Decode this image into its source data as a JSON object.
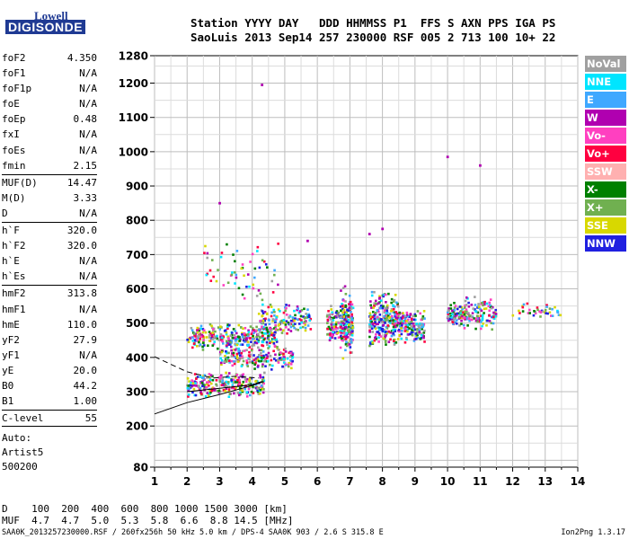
{
  "logo": {
    "line1": "Lowell",
    "line2": "DIGISONDE"
  },
  "header": {
    "line1": "Station YYYY DAY   DDD HHMMSS P1  FFS S AXN PPS IGA PS",
    "line2": "SaoLuis 2013 Sep14 257 230000 RSF 005 2 713 100 10+ 22"
  },
  "params_group1": [
    {
      "name": "foF2",
      "value": "4.350"
    },
    {
      "name": "foF1",
      "value": "N/A"
    },
    {
      "name": "foF1p",
      "value": "N/A"
    },
    {
      "name": "foE",
      "value": "N/A"
    },
    {
      "name": "foEp",
      "value": "0.48"
    },
    {
      "name": "fxI",
      "value": "N/A"
    },
    {
      "name": "foEs",
      "value": "N/A"
    },
    {
      "name": "fmin",
      "value": "2.15"
    }
  ],
  "params_group2": [
    {
      "name": "MUF(D)",
      "value": "14.47"
    },
    {
      "name": "M(D)",
      "value": "3.33"
    },
    {
      "name": "D",
      "value": "N/A"
    }
  ],
  "params_group3": [
    {
      "name": "h`F",
      "value": "320.0"
    },
    {
      "name": "h`F2",
      "value": "320.0"
    },
    {
      "name": "h`E",
      "value": "N/A"
    },
    {
      "name": "h`Es",
      "value": "N/A"
    }
  ],
  "params_group4": [
    {
      "name": "hmF2",
      "value": "313.8"
    },
    {
      "name": "hmF1",
      "value": "N/A"
    },
    {
      "name": "hmE",
      "value": "110.0"
    },
    {
      "name": "yF2",
      "value": "27.9"
    },
    {
      "name": "yF1",
      "value": "N/A"
    },
    {
      "name": "yE",
      "value": "20.0"
    },
    {
      "name": "B0",
      "value": "44.2"
    },
    {
      "name": "B1",
      "value": "1.00"
    }
  ],
  "clevel": {
    "name": "C-level",
    "value": "55"
  },
  "autoscale": [
    "Auto:",
    "Artist5",
    "500200"
  ],
  "legend": [
    {
      "label": "NoVal",
      "color": "#a0a0a0"
    },
    {
      "label": "NNE",
      "color": "#00e5ff"
    },
    {
      "label": "E",
      "color": "#3fa8ff"
    },
    {
      "label": "W",
      "color": "#b000b0"
    },
    {
      "label": "Vo-",
      "color": "#ff40c0"
    },
    {
      "label": "Vo+",
      "color": "#ff0040"
    },
    {
      "label": "SSW",
      "color": "#ffb0b0"
    },
    {
      "label": "X-",
      "color": "#008000"
    },
    {
      "label": "X+",
      "color": "#70b050"
    },
    {
      "label": "SSE",
      "color": "#d8d800"
    },
    {
      "label": "NNW",
      "color": "#2020e0"
    }
  ],
  "dmuf": {
    "line1": "D    100  200  400  600  800 1000 1500 3000 [km]",
    "line2": "MUF  4.7  4.7  5.0  5.3  5.8  6.6  8.8 14.5 [MHz]"
  },
  "footer": "SAA0K_2013257230000.RSF / 260fx256h 50 kHz 5.0 km / DPS-4 SAA0K 903 / 2.6 S 315.8 E",
  "version": "Ion2Png 1.3.17",
  "chart_data": {
    "type": "scatter",
    "xlim": [
      1,
      14
    ],
    "ylim": [
      80,
      1280
    ],
    "x_ticks": [
      1,
      2,
      3,
      4,
      5,
      6,
      7,
      8,
      9,
      10,
      11,
      12,
      13,
      14
    ],
    "y_ticks": [
      80,
      200,
      300,
      400,
      500,
      600,
      700,
      800,
      900,
      1000,
      1100,
      1200,
      1280
    ],
    "grid": true,
    "legend_position": "right",
    "clusters": [
      {
        "x": [
          2.0,
          4.4
        ],
        "y": [
          280,
          360
        ],
        "n": 260
      },
      {
        "x": [
          2.0,
          4.8
        ],
        "y": [
          420,
          500
        ],
        "n": 320
      },
      {
        "x": [
          3.0,
          5.3
        ],
        "y": [
          360,
          430
        ],
        "n": 180
      },
      {
        "x": [
          4.2,
          5.8
        ],
        "y": [
          460,
          560
        ],
        "n": 150
      },
      {
        "x": [
          6.3,
          7.1
        ],
        "y": [
          440,
          560
        ],
        "n": 170
      },
      {
        "x": [
          6.7,
          7.1
        ],
        "y": [
          370,
          620
        ],
        "n": 110
      },
      {
        "x": [
          7.6,
          8.5
        ],
        "y": [
          420,
          600
        ],
        "n": 260
      },
      {
        "x": [
          8.5,
          9.3
        ],
        "y": [
          440,
          540
        ],
        "n": 150
      },
      {
        "x": [
          10.0,
          10.6
        ],
        "y": [
          490,
          560
        ],
        "n": 90
      },
      {
        "x": [
          10.5,
          11.5
        ],
        "y": [
          480,
          580
        ],
        "n": 110
      },
      {
        "x": [
          12.0,
          13.5
        ],
        "y": [
          510,
          560
        ],
        "n": 40
      },
      {
        "x": [
          2.5,
          4.8
        ],
        "y": [
          540,
          740
        ],
        "n": 60
      }
    ],
    "outliers": [
      {
        "x": 4.3,
        "y": 1195
      },
      {
        "x": 3.0,
        "y": 850
      },
      {
        "x": 10.0,
        "y": 985
      },
      {
        "x": 11.0,
        "y": 960
      },
      {
        "x": 8.0,
        "y": 775
      },
      {
        "x": 7.6,
        "y": 760
      },
      {
        "x": 5.7,
        "y": 740
      }
    ],
    "trace_solid": [
      [
        1,
        235
      ],
      [
        2,
        268
      ],
      [
        3,
        292
      ],
      [
        4,
        318
      ],
      [
        4.35,
        330
      ]
    ],
    "trace_dashed": [
      [
        1,
        402
      ],
      [
        1.5,
        380
      ],
      [
        2,
        358
      ],
      [
        2.8,
        340
      ],
      [
        3.5,
        345
      ],
      [
        4.2,
        340
      ]
    ],
    "trace_solid2": [
      [
        2,
        300
      ],
      [
        3,
        310
      ],
      [
        4,
        320
      ],
      [
        4.3,
        330
      ]
    ]
  }
}
